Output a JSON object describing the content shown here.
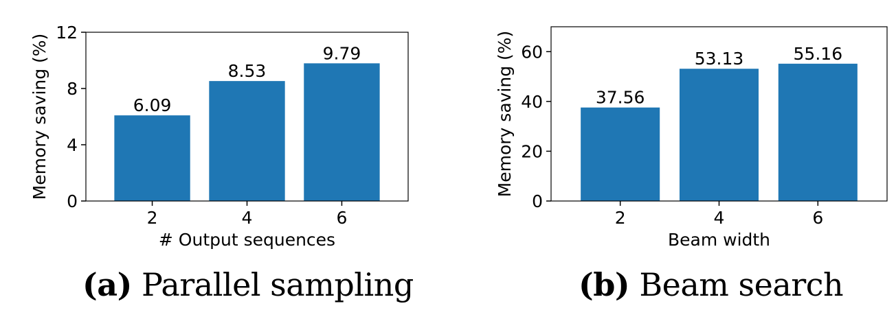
{
  "chart_data": [
    {
      "type": "bar",
      "categories": [
        "2",
        "4",
        "6"
      ],
      "values": [
        6.09,
        8.53,
        9.79
      ],
      "value_labels": [
        "6.09",
        "8.53",
        "9.79"
      ],
      "xlabel": "# Output sequences",
      "ylabel": "Memory saving (%)",
      "ylim": [
        0,
        12
      ],
      "yticks": [
        0,
        4,
        8,
        12
      ],
      "ytick_labels": [
        "0",
        "4",
        "8",
        "12"
      ],
      "bar_color": "#1f77b4",
      "grid": false
    },
    {
      "type": "bar",
      "categories": [
        "2",
        "4",
        "6"
      ],
      "values": [
        37.56,
        53.13,
        55.16
      ],
      "value_labels": [
        "37.56",
        "53.13",
        "55.16"
      ],
      "xlabel": "Beam width",
      "ylabel": "Memory saving (%)",
      "ylim": [
        0,
        70
      ],
      "yticks": [
        0,
        20,
        40,
        60
      ],
      "ytick_labels": [
        "0",
        "20",
        "40",
        "60"
      ],
      "bar_color": "#1f77b4",
      "grid": false
    }
  ],
  "captions": [
    {
      "label": "(a)",
      "text": " Parallel sampling"
    },
    {
      "label": "(b)",
      "text": " Beam search"
    }
  ]
}
